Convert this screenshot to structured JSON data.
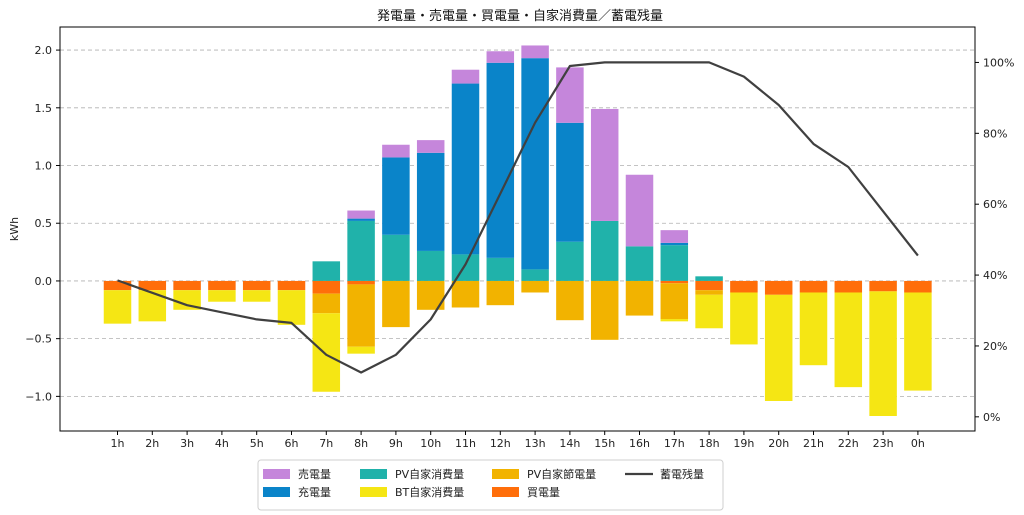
{
  "chart_data": {
    "type": "bar",
    "title": "発電量・売電量・買電量・自家消費量／蓄電残量",
    "ylabel": "kWh",
    "ylim": [
      -1.3,
      2.2
    ],
    "y_ticks": [
      -1.0,
      -0.5,
      0.0,
      0.5,
      1.0,
      1.5,
      2.0
    ],
    "y_tick_labels": [
      "−1.0",
      "−0.5",
      "0.0",
      "0.5",
      "1.0",
      "1.5",
      "2.0"
    ],
    "y2lim": [
      -4,
      110
    ],
    "y2_ticks": [
      0,
      20,
      40,
      60,
      80,
      100
    ],
    "y2_tick_labels": [
      "0%",
      "20%",
      "40%",
      "60%",
      "80%",
      "100%"
    ],
    "grid": true,
    "legend_position": "bottom-center",
    "categories": [
      "1h",
      "2h",
      "3h",
      "4h",
      "5h",
      "6h",
      "7h",
      "8h",
      "9h",
      "10h",
      "11h",
      "12h",
      "13h",
      "14h",
      "15h",
      "16h",
      "17h",
      "18h",
      "19h",
      "20h",
      "21h",
      "22h",
      "23h",
      "0h"
    ],
    "positive_series": [
      {
        "key": "pv_self",
        "name": "PV自家消費量",
        "color": "#20b2aa",
        "values": [
          0,
          0,
          0,
          0,
          0,
          0,
          0.17,
          0.52,
          0.4,
          0.26,
          0.23,
          0.2,
          0.1,
          0.34,
          0.52,
          0.3,
          0.31,
          0.04,
          0,
          0,
          0,
          0,
          0,
          0
        ]
      },
      {
        "key": "charge",
        "name": "充電量",
        "color": "#0a84c9",
        "values": [
          0,
          0,
          0,
          0,
          0,
          0,
          0,
          0.02,
          0.67,
          0.85,
          1.48,
          1.69,
          1.83,
          1.03,
          0,
          0,
          0.02,
          0,
          0,
          0,
          0,
          0,
          0,
          0
        ]
      },
      {
        "key": "sell",
        "name": "売電量",
        "color": "#c586db",
        "values": [
          0,
          0,
          0,
          0,
          0,
          0,
          0,
          0.07,
          0.11,
          0.11,
          0.12,
          0.1,
          0.11,
          0.48,
          0.97,
          0.62,
          0.11,
          0,
          0,
          0,
          0,
          0,
          0,
          0
        ]
      }
    ],
    "negative_series": [
      {
        "key": "buy",
        "name": "買電量",
        "color": "#ff6e0a",
        "values": [
          -0.08,
          -0.08,
          -0.08,
          -0.08,
          -0.08,
          -0.08,
          -0.11,
          -0.03,
          0,
          0,
          0,
          0,
          0,
          0,
          0,
          0,
          -0.02,
          -0.08,
          -0.1,
          -0.12,
          -0.1,
          -0.1,
          -0.09,
          -0.1
        ]
      },
      {
        "key": "pv_saving",
        "name": "PV自家節電量",
        "color": "#f2b300",
        "values": [
          0,
          0,
          0,
          0,
          0,
          0,
          -0.17,
          -0.54,
          -0.4,
          -0.25,
          -0.23,
          -0.21,
          -0.1,
          -0.34,
          -0.51,
          -0.3,
          -0.31,
          -0.04,
          0,
          0,
          0,
          0,
          0,
          0
        ]
      },
      {
        "key": "bt_self",
        "name": "BT自家消費量",
        "color": "#f5e614",
        "values": [
          -0.29,
          -0.27,
          -0.17,
          -0.1,
          -0.1,
          -0.3,
          -0.68,
          -0.06,
          0,
          0,
          0,
          0,
          0,
          0,
          0,
          0,
          -0.02,
          -0.29,
          -0.45,
          -0.92,
          -0.63,
          -0.82,
          -1.08,
          -0.85
        ]
      }
    ],
    "line_series": {
      "name": "蓄電残量",
      "color": "#404040",
      "axis": "right",
      "unit": "%",
      "values": [
        38.5,
        35,
        31.5,
        29.5,
        27.5,
        26.5,
        17.5,
        12.5,
        17.5,
        27.5,
        43,
        63,
        83,
        99,
        100,
        100,
        100,
        100,
        96,
        88,
        77,
        70.5,
        58,
        45.5
      ]
    },
    "legend_order": [
      "sell",
      "charge",
      "pv_self",
      "bt_self",
      "pv_saving",
      "buy",
      "line"
    ]
  }
}
